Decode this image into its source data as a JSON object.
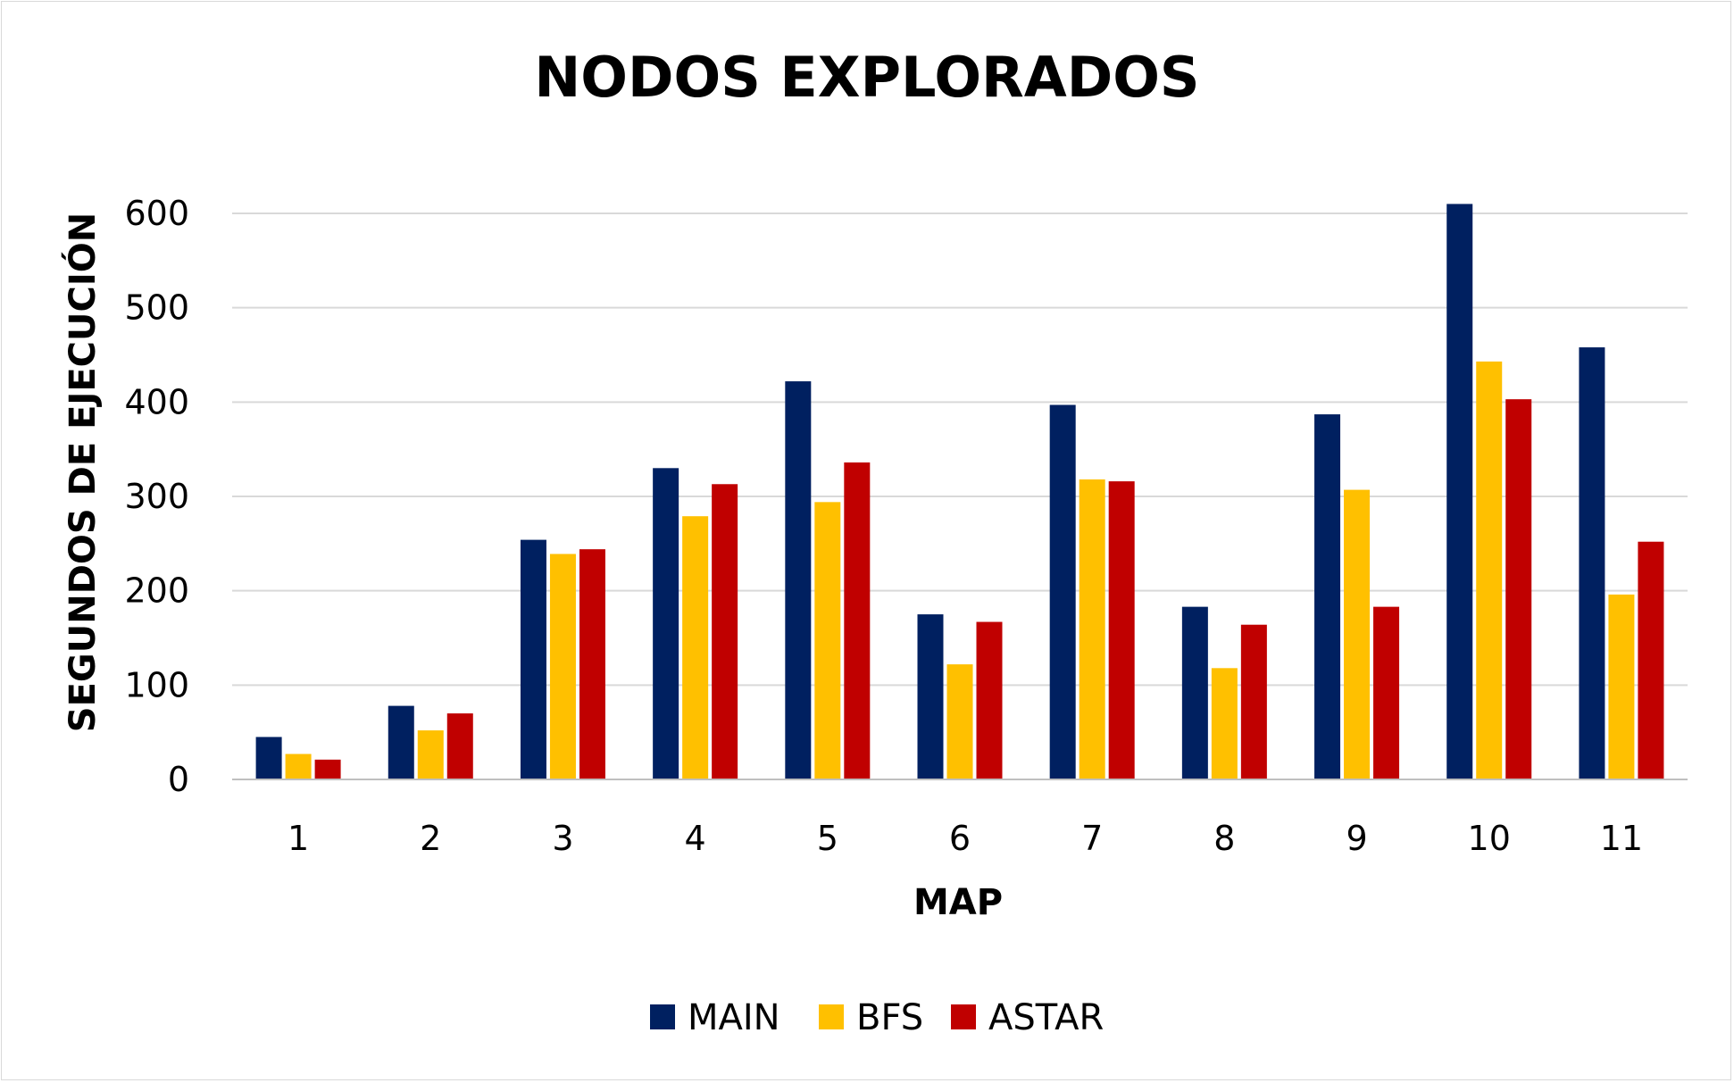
{
  "chart_data": {
    "type": "bar",
    "title": "NODOS EXPLORADOS",
    "xlabel": "MAP",
    "ylabel": "SEGUNDOS DE EJECUCIÓN",
    "categories": [
      "1",
      "2",
      "3",
      "4",
      "5",
      "6",
      "7",
      "8",
      "9",
      "10",
      "11"
    ],
    "yticks": [
      "0",
      "100",
      "200",
      "300",
      "400",
      "500",
      "600"
    ],
    "ylim": [
      0,
      600
    ],
    "grid": true,
    "legend_position": "bottom",
    "series": [
      {
        "name": "MAIN",
        "color": "#002060",
        "values": [
          45,
          78,
          254,
          330,
          422,
          175,
          397,
          183,
          387,
          610,
          458
        ]
      },
      {
        "name": "BFS",
        "color": "#FFC000",
        "values": [
          27,
          52,
          239,
          279,
          294,
          122,
          318,
          118,
          307,
          443,
          196
        ]
      },
      {
        "name": "ASTAR",
        "color": "#C00000",
        "values": [
          21,
          70,
          244,
          313,
          336,
          167,
          316,
          164,
          183,
          403,
          252
        ]
      }
    ]
  }
}
